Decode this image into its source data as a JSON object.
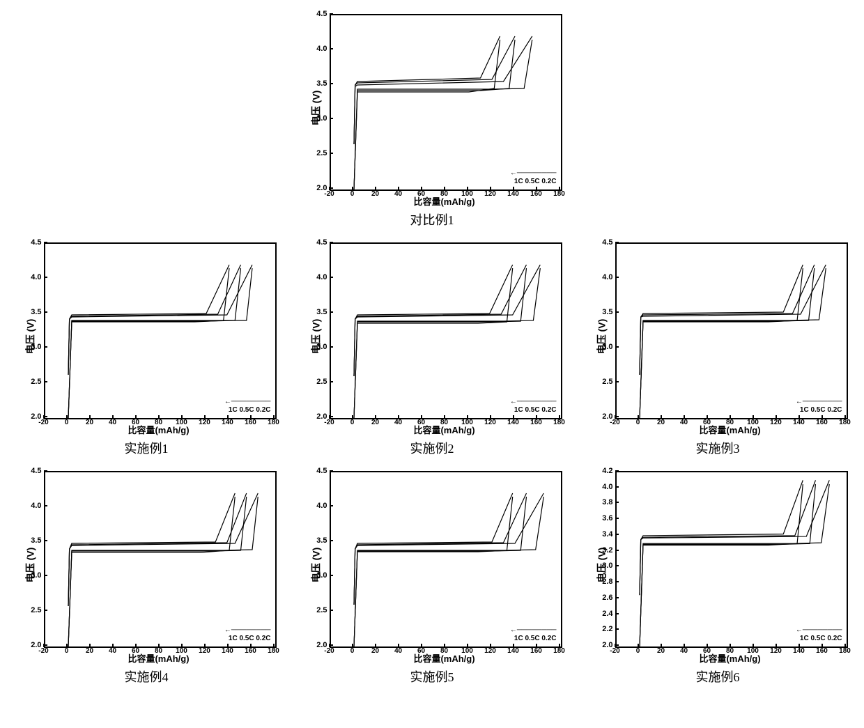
{
  "global": {
    "ylabel": "电压 (V)",
    "xlabel": "比容量(mAh/g)",
    "xlim": [
      -20,
      180
    ],
    "xtick_step": 20,
    "ylim_std": [
      2.0,
      4.5
    ],
    "ytick_step_std": 0.5,
    "line_color": "#000000",
    "line_width": 1.2,
    "background_color": "#ffffff",
    "border_color": "#000000",
    "legend_labels": [
      "1C",
      "0.5C",
      "0.2C"
    ],
    "arrow": "←"
  },
  "panels": [
    {
      "id": "comp1",
      "caption": "对比例1",
      "grid_pos": "top-center",
      "ylim": [
        2.0,
        4.5
      ],
      "ytick_step": 0.5,
      "series": [
        {
          "name": "1C",
          "charge": [
            [
              0,
              2.65
            ],
            [
              1,
              3.5
            ],
            [
              3,
              3.55
            ],
            [
              110,
              3.6
            ],
            [
              127,
              4.2
            ]
          ],
          "discharge": [
            [
              127,
              4.15
            ],
            [
              122,
              3.45
            ],
            [
              100,
              3.4
            ],
            [
              60,
              3.4
            ],
            [
              20,
              3.4
            ],
            [
              3,
              3.4
            ],
            [
              0,
              2.0
            ]
          ],
          "reverse_start": true
        },
        {
          "name": "0.5C",
          "charge": [
            [
              0,
              2.65
            ],
            [
              1,
              3.5
            ],
            [
              3,
              3.53
            ],
            [
              120,
              3.58
            ],
            [
              140,
              4.2
            ]
          ],
          "discharge": [
            [
              140,
              4.15
            ],
            [
              135,
              3.45
            ],
            [
              110,
              3.42
            ],
            [
              70,
              3.42
            ],
            [
              20,
              3.42
            ],
            [
              3,
              3.42
            ],
            [
              0,
              2.0
            ]
          ]
        },
        {
          "name": "0.2C",
          "charge": [
            [
              0,
              2.65
            ],
            [
              1,
              3.48
            ],
            [
              3,
              3.5
            ],
            [
              130,
              3.55
            ],
            [
              155,
              4.2
            ]
          ],
          "discharge": [
            [
              155,
              4.15
            ],
            [
              148,
              3.45
            ],
            [
              120,
              3.44
            ],
            [
              80,
              3.44
            ],
            [
              20,
              3.44
            ],
            [
              3,
              3.44
            ],
            [
              0,
              2.0
            ]
          ]
        }
      ]
    },
    {
      "id": "ex1",
      "caption": "实施例1",
      "grid_pos": "r2c1",
      "ylim": [
        2.0,
        4.5
      ],
      "ytick_step": 0.5,
      "series": [
        {
          "name": "1C",
          "charge": [
            [
              0,
              2.62
            ],
            [
              1,
              3.42
            ],
            [
              3,
              3.48
            ],
            [
              120,
              3.5
            ],
            [
              140,
              4.2
            ]
          ],
          "discharge": [
            [
              140,
              4.15
            ],
            [
              135,
              3.4
            ],
            [
              110,
              3.38
            ],
            [
              60,
              3.38
            ],
            [
              3,
              3.38
            ],
            [
              0,
              2.0
            ]
          ]
        },
        {
          "name": "0.5C",
          "charge": [
            [
              0,
              2.62
            ],
            [
              1,
              3.42
            ],
            [
              3,
              3.46
            ],
            [
              130,
              3.49
            ],
            [
              150,
              4.2
            ]
          ],
          "discharge": [
            [
              150,
              4.15
            ],
            [
              145,
              3.4
            ],
            [
              120,
              3.39
            ],
            [
              70,
              3.39
            ],
            [
              3,
              3.39
            ],
            [
              0,
              2.0
            ]
          ]
        },
        {
          "name": "0.2C",
          "charge": [
            [
              0,
              2.62
            ],
            [
              1,
              3.42
            ],
            [
              3,
              3.45
            ],
            [
              138,
              3.48
            ],
            [
              160,
              4.2
            ]
          ],
          "discharge": [
            [
              160,
              4.15
            ],
            [
              155,
              3.4
            ],
            [
              130,
              3.4
            ],
            [
              80,
              3.4
            ],
            [
              3,
              3.4
            ],
            [
              0,
              2.0
            ]
          ]
        }
      ]
    },
    {
      "id": "ex2",
      "caption": "实施例2",
      "grid_pos": "r2c2",
      "ylim": [
        2.0,
        4.5
      ],
      "ytick_step": 0.5,
      "series": [
        {
          "name": "1C",
          "charge": [
            [
              0,
              2.6
            ],
            [
              1,
              3.42
            ],
            [
              3,
              3.48
            ],
            [
              118,
              3.5
            ],
            [
              138,
              4.2
            ]
          ],
          "discharge": [
            [
              138,
              4.15
            ],
            [
              133,
              3.38
            ],
            [
              108,
              3.36
            ],
            [
              60,
              3.36
            ],
            [
              3,
              3.36
            ],
            [
              0,
              2.0
            ]
          ]
        },
        {
          "name": "0.5C",
          "charge": [
            [
              0,
              2.6
            ],
            [
              1,
              3.42
            ],
            [
              3,
              3.46
            ],
            [
              128,
              3.49
            ],
            [
              150,
              4.2
            ]
          ],
          "discharge": [
            [
              150,
              4.15
            ],
            [
              145,
              3.39
            ],
            [
              118,
              3.38
            ],
            [
              70,
              3.38
            ],
            [
              3,
              3.38
            ],
            [
              0,
              2.0
            ]
          ]
        },
        {
          "name": "0.2C",
          "charge": [
            [
              0,
              2.6
            ],
            [
              1,
              3.42
            ],
            [
              3,
              3.45
            ],
            [
              138,
              3.48
            ],
            [
              162,
              4.2
            ]
          ],
          "discharge": [
            [
              162,
              4.15
            ],
            [
              156,
              3.4
            ],
            [
              130,
              3.39
            ],
            [
              80,
              3.39
            ],
            [
              3,
              3.39
            ],
            [
              0,
              2.0
            ]
          ]
        }
      ]
    },
    {
      "id": "ex3",
      "caption": "实施例3",
      "grid_pos": "r2c3",
      "ylim": [
        2.0,
        4.5
      ],
      "ytick_step": 0.5,
      "series": [
        {
          "name": "1C",
          "charge": [
            [
              0,
              2.62
            ],
            [
              1,
              3.45
            ],
            [
              3,
              3.5
            ],
            [
              125,
              3.52
            ],
            [
              142,
              4.2
            ]
          ],
          "discharge": [
            [
              142,
              4.15
            ],
            [
              137,
              3.4
            ],
            [
              112,
              3.38
            ],
            [
              60,
              3.38
            ],
            [
              3,
              3.38
            ],
            [
              0,
              2.0
            ]
          ]
        },
        {
          "name": "0.5C",
          "charge": [
            [
              0,
              2.62
            ],
            [
              1,
              3.45
            ],
            [
              3,
              3.48
            ],
            [
              133,
              3.5
            ],
            [
              152,
              4.2
            ]
          ],
          "discharge": [
            [
              152,
              4.15
            ],
            [
              147,
              3.4
            ],
            [
              122,
              3.39
            ],
            [
              70,
              3.39
            ],
            [
              3,
              3.39
            ],
            [
              0,
              2.0
            ]
          ]
        },
        {
          "name": "0.2C",
          "charge": [
            [
              0,
              2.62
            ],
            [
              1,
              3.45
            ],
            [
              3,
              3.46
            ],
            [
              140,
              3.49
            ],
            [
              162,
              4.2
            ]
          ],
          "discharge": [
            [
              162,
              4.15
            ],
            [
              156,
              3.41
            ],
            [
              130,
              3.4
            ],
            [
              80,
              3.4
            ],
            [
              3,
              3.4
            ],
            [
              0,
              2.0
            ]
          ]
        }
      ]
    },
    {
      "id": "ex4",
      "caption": "实施例4",
      "grid_pos": "r3c1",
      "ylim": [
        2.0,
        4.5
      ],
      "ytick_step": 0.5,
      "series": [
        {
          "name": "1C",
          "charge": [
            [
              0,
              2.58
            ],
            [
              1,
              3.4
            ],
            [
              3,
              3.48
            ],
            [
              128,
              3.5
            ],
            [
              145,
              4.2
            ]
          ],
          "discharge": [
            [
              145,
              4.15
            ],
            [
              140,
              3.38
            ],
            [
              115,
              3.35
            ],
            [
              60,
              3.35
            ],
            [
              3,
              3.35
            ],
            [
              0,
              2.0
            ]
          ]
        },
        {
          "name": "0.5C",
          "charge": [
            [
              0,
              2.58
            ],
            [
              1,
              3.4
            ],
            [
              3,
              3.46
            ],
            [
              138,
              3.49
            ],
            [
              155,
              4.2
            ]
          ],
          "discharge": [
            [
              155,
              4.15
            ],
            [
              150,
              3.38
            ],
            [
              125,
              3.37
            ],
            [
              70,
              3.37
            ],
            [
              3,
              3.37
            ],
            [
              0,
              2.0
            ]
          ]
        },
        {
          "name": "0.2C",
          "charge": [
            [
              0,
              2.58
            ],
            [
              1,
              3.4
            ],
            [
              3,
              3.45
            ],
            [
              145,
              3.48
            ],
            [
              165,
              4.2
            ]
          ],
          "discharge": [
            [
              165,
              4.15
            ],
            [
              160,
              3.39
            ],
            [
              135,
              3.38
            ],
            [
              80,
              3.38
            ],
            [
              3,
              3.38
            ],
            [
              0,
              2.0
            ]
          ]
        }
      ]
    },
    {
      "id": "ex5",
      "caption": "实施例5",
      "grid_pos": "r3c2",
      "ylim": [
        2.0,
        4.5
      ],
      "ytick_step": 0.5,
      "series": [
        {
          "name": "1C",
          "charge": [
            [
              0,
              2.6
            ],
            [
              1,
              3.4
            ],
            [
              3,
              3.48
            ],
            [
              120,
              3.5
            ],
            [
              138,
              4.2
            ]
          ],
          "discharge": [
            [
              138,
              4.15
            ],
            [
              133,
              3.38
            ],
            [
              108,
              3.36
            ],
            [
              60,
              3.36
            ],
            [
              3,
              3.36
            ],
            [
              0,
              2.0
            ]
          ]
        },
        {
          "name": "0.5C",
          "charge": [
            [
              0,
              2.6
            ],
            [
              1,
              3.4
            ],
            [
              3,
              3.46
            ],
            [
              130,
              3.49
            ],
            [
              150,
              4.2
            ]
          ],
          "discharge": [
            [
              150,
              4.15
            ],
            [
              145,
              3.38
            ],
            [
              120,
              3.37
            ],
            [
              70,
              3.37
            ],
            [
              3,
              3.37
            ],
            [
              0,
              2.0
            ]
          ]
        },
        {
          "name": "0.2C",
          "charge": [
            [
              0,
              2.6
            ],
            [
              1,
              3.4
            ],
            [
              3,
              3.45
            ],
            [
              140,
              3.48
            ],
            [
              165,
              4.2
            ]
          ],
          "discharge": [
            [
              165,
              4.15
            ],
            [
              158,
              3.39
            ],
            [
              132,
              3.38
            ],
            [
              80,
              3.38
            ],
            [
              3,
              3.38
            ],
            [
              0,
              2.0
            ]
          ]
        }
      ]
    },
    {
      "id": "ex6",
      "caption": "实施例6",
      "grid_pos": "r3c3",
      "ylim": [
        2.0,
        4.2
      ],
      "ytick_step": 0.2,
      "series": [
        {
          "name": "1C",
          "charge": [
            [
              0,
              2.65
            ],
            [
              1,
              3.35
            ],
            [
              3,
              3.4
            ],
            [
              125,
              3.42
            ],
            [
              142,
              4.1
            ]
          ],
          "discharge": [
            [
              142,
              4.05
            ],
            [
              137,
              3.3
            ],
            [
              112,
              3.28
            ],
            [
              60,
              3.28
            ],
            [
              3,
              3.28
            ],
            [
              0,
              2.0
            ]
          ]
        },
        {
          "name": "0.5C",
          "charge": [
            [
              0,
              2.65
            ],
            [
              1,
              3.35
            ],
            [
              3,
              3.38
            ],
            [
              135,
              3.4
            ],
            [
              153,
              4.1
            ]
          ],
          "discharge": [
            [
              153,
              4.05
            ],
            [
              148,
              3.3
            ],
            [
              123,
              3.29
            ],
            [
              70,
              3.29
            ],
            [
              3,
              3.29
            ],
            [
              0,
              2.0
            ]
          ]
        },
        {
          "name": "0.2C",
          "charge": [
            [
              0,
              2.65
            ],
            [
              1,
              3.35
            ],
            [
              3,
              3.37
            ],
            [
              145,
              3.39
            ],
            [
              165,
              4.1
            ]
          ],
          "discharge": [
            [
              165,
              4.05
            ],
            [
              158,
              3.31
            ],
            [
              133,
              3.3
            ],
            [
              80,
              3.3
            ],
            [
              3,
              3.3
            ],
            [
              0,
              2.0
            ]
          ]
        }
      ]
    }
  ]
}
